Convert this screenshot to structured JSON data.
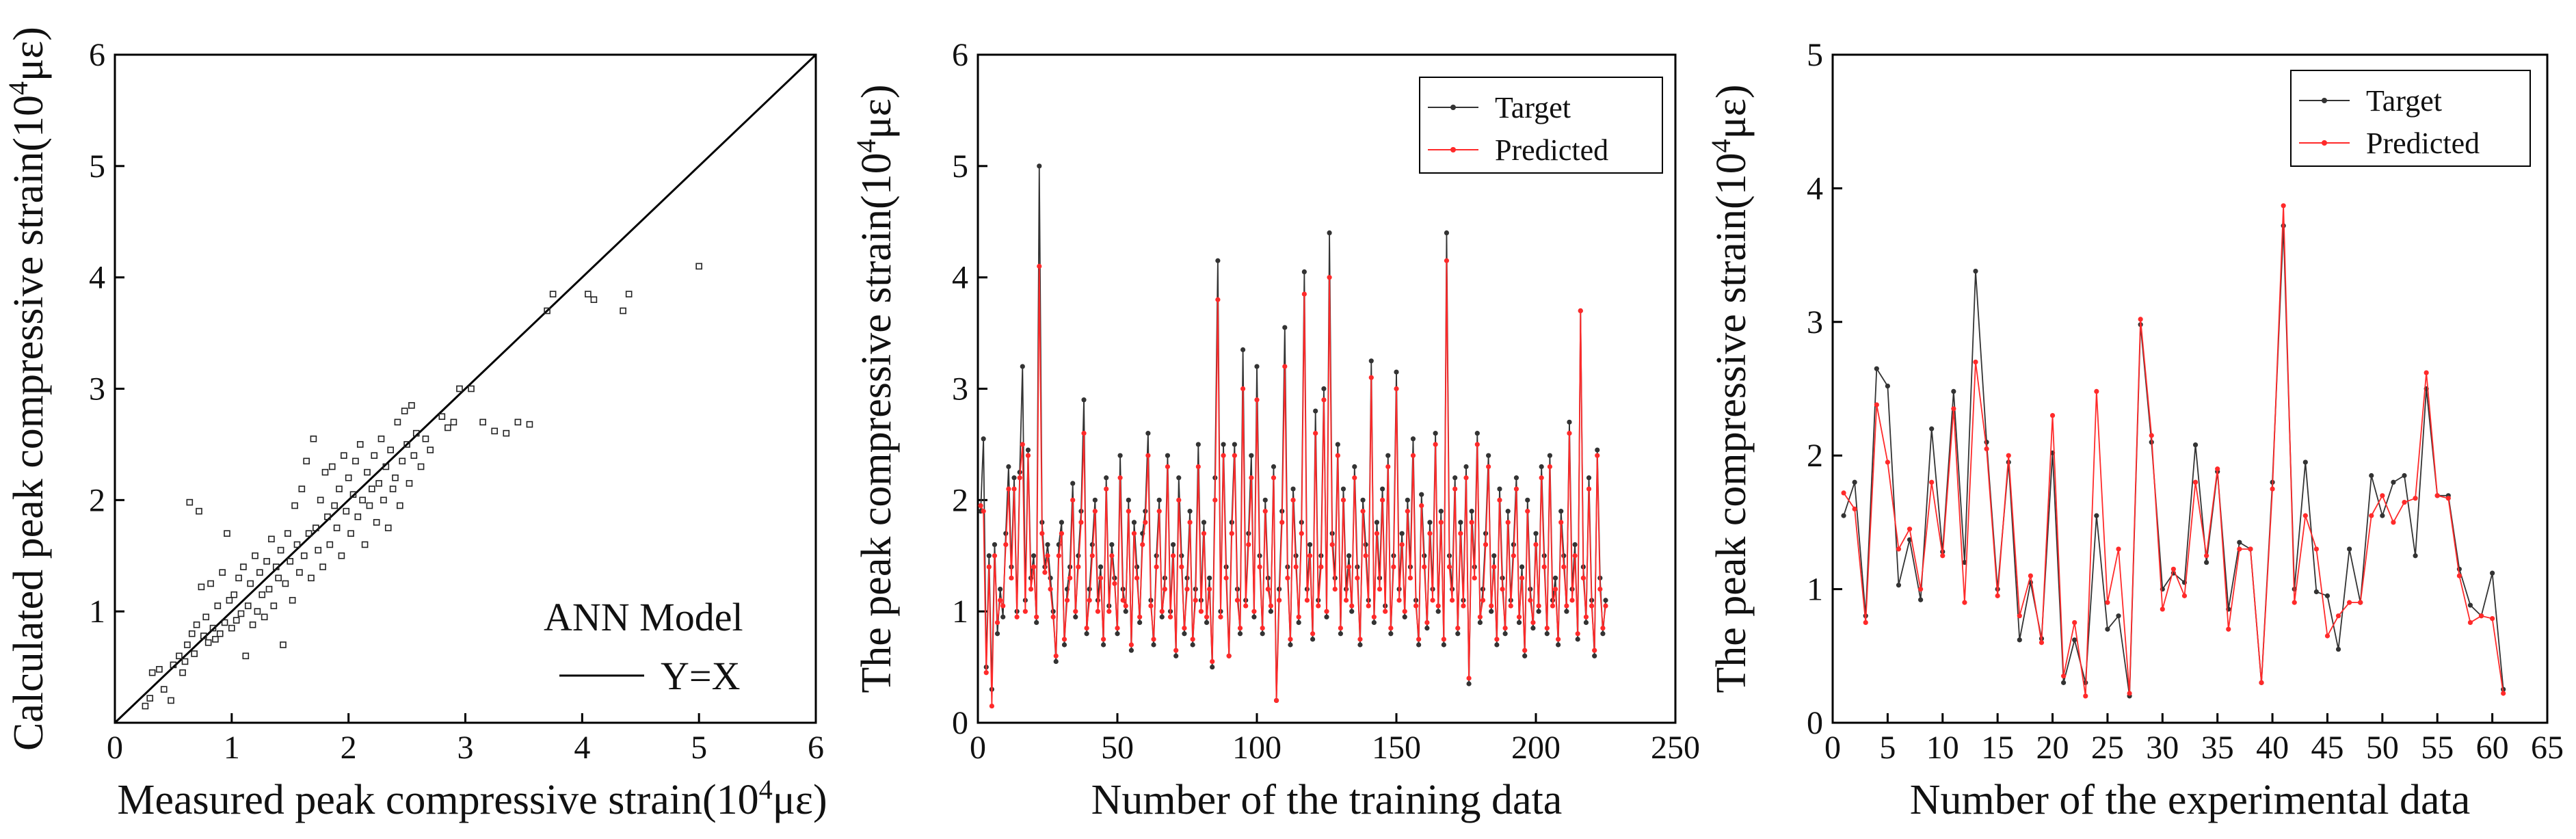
{
  "chart_data": [
    {
      "type": "scatter",
      "title": "",
      "xlabel": "Measured peak compressive strain(10",
      "ylabel": "Calculated peak compressive strain(10",
      "unit_sup": "4",
      "unit_suffix": "με)",
      "xlim": [
        0,
        6
      ],
      "ylim": [
        0,
        6
      ],
      "xticks": [
        0,
        1,
        2,
        3,
        4,
        5,
        6
      ],
      "yticks": [
        1,
        2,
        3,
        4,
        5,
        6
      ],
      "annotation": "ANN Model",
      "line_label": "Y=X",
      "reference_line": {
        "from": [
          0,
          0
        ],
        "to": [
          6,
          6
        ]
      },
      "points": [
        [
          0.26,
          0.15
        ],
        [
          0.3,
          0.22
        ],
        [
          0.32,
          0.45
        ],
        [
          0.38,
          0.48
        ],
        [
          0.42,
          0.3
        ],
        [
          0.48,
          0.2
        ],
        [
          0.5,
          0.52
        ],
        [
          0.55,
          0.6
        ],
        [
          0.58,
          0.45
        ],
        [
          0.6,
          0.55
        ],
        [
          0.62,
          0.7
        ],
        [
          0.64,
          1.98
        ],
        [
          0.66,
          0.8
        ],
        [
          0.68,
          0.62
        ],
        [
          0.7,
          0.88
        ],
        [
          0.72,
          1.9
        ],
        [
          0.74,
          1.22
        ],
        [
          0.76,
          0.78
        ],
        [
          0.78,
          0.95
        ],
        [
          0.8,
          0.72
        ],
        [
          0.82,
          1.25
        ],
        [
          0.84,
          0.85
        ],
        [
          0.86,
          0.75
        ],
        [
          0.88,
          1.05
        ],
        [
          0.9,
          0.8
        ],
        [
          0.92,
          1.35
        ],
        [
          0.94,
          0.9
        ],
        [
          0.96,
          1.7
        ],
        [
          0.98,
          1.1
        ],
        [
          1.0,
          0.85
        ],
        [
          1.02,
          1.15
        ],
        [
          1.04,
          0.92
        ],
        [
          1.06,
          1.3
        ],
        [
          1.08,
          0.98
        ],
        [
          1.1,
          1.4
        ],
        [
          1.12,
          0.6
        ],
        [
          1.14,
          1.05
        ],
        [
          1.16,
          1.25
        ],
        [
          1.18,
          0.88
        ],
        [
          1.2,
          1.5
        ],
        [
          1.22,
          1.0
        ],
        [
          1.24,
          1.35
        ],
        [
          1.26,
          1.15
        ],
        [
          1.28,
          0.95
        ],
        [
          1.3,
          1.45
        ],
        [
          1.32,
          1.2
        ],
        [
          1.34,
          1.65
        ],
        [
          1.36,
          1.05
        ],
        [
          1.38,
          1.4
        ],
        [
          1.4,
          1.3
        ],
        [
          1.42,
          1.55
        ],
        [
          1.44,
          0.7
        ],
        [
          1.46,
          1.25
        ],
        [
          1.48,
          1.7
        ],
        [
          1.5,
          1.45
        ],
        [
          1.52,
          1.1
        ],
        [
          1.54,
          1.95
        ],
        [
          1.56,
          1.6
        ],
        [
          1.58,
          1.35
        ],
        [
          1.6,
          2.1
        ],
        [
          1.62,
          1.5
        ],
        [
          1.64,
          2.35
        ],
        [
          1.66,
          1.7
        ],
        [
          1.68,
          1.3
        ],
        [
          1.7,
          2.55
        ],
        [
          1.72,
          1.75
        ],
        [
          1.74,
          1.55
        ],
        [
          1.76,
          2.0
        ],
        [
          1.78,
          1.4
        ],
        [
          1.8,
          2.25
        ],
        [
          1.82,
          1.85
        ],
        [
          1.84,
          1.6
        ],
        [
          1.86,
          2.3
        ],
        [
          1.88,
          1.95
        ],
        [
          1.9,
          1.75
        ],
        [
          1.92,
          2.1
        ],
        [
          1.94,
          1.5
        ],
        [
          1.96,
          2.4
        ],
        [
          1.98,
          1.9
        ],
        [
          2.0,
          2.2
        ],
        [
          2.02,
          1.7
        ],
        [
          2.04,
          2.05
        ],
        [
          2.06,
          2.35
        ],
        [
          2.08,
          1.85
        ],
        [
          2.1,
          2.5
        ],
        [
          2.12,
          2.0
        ],
        [
          2.14,
          1.6
        ],
        [
          2.16,
          2.25
        ],
        [
          2.18,
          1.95
        ],
        [
          2.2,
          2.1
        ],
        [
          2.22,
          2.4
        ],
        [
          2.24,
          1.8
        ],
        [
          2.26,
          2.15
        ],
        [
          2.28,
          2.55
        ],
        [
          2.3,
          2.0
        ],
        [
          2.32,
          2.3
        ],
        [
          2.34,
          1.75
        ],
        [
          2.36,
          2.45
        ],
        [
          2.38,
          2.1
        ],
        [
          2.4,
          2.2
        ],
        [
          2.42,
          2.7
        ],
        [
          2.44,
          1.95
        ],
        [
          2.46,
          2.35
        ],
        [
          2.48,
          2.8
        ],
        [
          2.5,
          2.5
        ],
        [
          2.52,
          2.15
        ],
        [
          2.54,
          2.85
        ],
        [
          2.56,
          2.4
        ],
        [
          2.58,
          2.6
        ],
        [
          2.62,
          2.3
        ],
        [
          2.66,
          2.55
        ],
        [
          2.7,
          2.45
        ],
        [
          2.8,
          2.75
        ],
        [
          2.85,
          2.65
        ],
        [
          2.9,
          2.7
        ],
        [
          2.95,
          3.0
        ],
        [
          3.05,
          3.0
        ],
        [
          3.15,
          2.7
        ],
        [
          3.25,
          2.62
        ],
        [
          3.35,
          2.6
        ],
        [
          3.45,
          2.7
        ],
        [
          3.55,
          2.68
        ],
        [
          3.7,
          3.7
        ],
        [
          3.75,
          3.85
        ],
        [
          4.05,
          3.85
        ],
        [
          4.1,
          3.8
        ],
        [
          4.35,
          3.7
        ],
        [
          4.4,
          3.85
        ],
        [
          5.0,
          4.1
        ]
      ]
    },
    {
      "type": "line",
      "title": "",
      "xlabel": "Number of the training data",
      "ylabel": "The peak compressive strain(10",
      "unit_sup": "4",
      "unit_suffix": "με)",
      "xlim": [
        0,
        250
      ],
      "ylim": [
        0,
        6
      ],
      "xticks": [
        0,
        50,
        100,
        150,
        200,
        250
      ],
      "yticks": [
        0,
        1,
        2,
        3,
        4,
        5,
        6
      ],
      "legend_position": "top-right",
      "series": [
        {
          "name": "Target",
          "color": "#333333",
          "values": [
            1.9,
            2.55,
            0.5,
            1.5,
            0.3,
            1.6,
            0.8,
            1.2,
            0.95,
            1.7,
            2.3,
            1.4,
            2.2,
            1.0,
            2.25,
            3.2,
            1.1,
            2.45,
            1.3,
            1.5,
            0.9,
            5.0,
            1.8,
            1.4,
            1.6,
            1.3,
            1.0,
            0.55,
            1.6,
            1.8,
            0.7,
            1.2,
            1.4,
            2.15,
            0.95,
            1.5,
            1.9,
            2.9,
            0.8,
            1.2,
            1.6,
            2.0,
            1.1,
            1.4,
            0.7,
            2.2,
            1.05,
            1.6,
            1.3,
            0.8,
            2.4,
            1.2,
            1.0,
            2.0,
            0.65,
            1.8,
            1.4,
            0.9,
            1.7,
            1.9,
            2.6,
            1.1,
            0.7,
            1.5,
            2.0,
            0.95,
            1.3,
            2.4,
            1.0,
            1.6,
            0.6,
            2.2,
            1.5,
            0.8,
            1.3,
            1.9,
            0.7,
            1.2,
            2.5,
            1.1,
            1.8,
            0.9,
            1.3,
            0.5,
            2.2,
            4.15,
            1.0,
            2.5,
            1.4,
            0.6,
            1.8,
            2.5,
            1.2,
            0.8,
            3.35,
            1.1,
            1.7,
            2.4,
            0.95,
            3.2,
            1.5,
            0.8,
            2.0,
            1.3,
            1.0,
            2.3,
            0.2,
            1.2,
            1.9,
            3.55,
            1.4,
            0.7,
            2.1,
            1.5,
            0.9,
            1.8,
            4.05,
            1.2,
            1.6,
            0.75,
            2.8,
            1.1,
            1.5,
            3.0,
            0.95,
            4.4,
            1.7,
            1.3,
            2.5,
            0.8,
            2.1,
            1.2,
            1.5,
            1.0,
            2.3,
            1.4,
            0.7,
            2.0,
            1.6,
            1.1,
            3.25,
            0.9,
            1.8,
            1.3,
            2.1,
            1.05,
            2.4,
            0.8,
            1.5,
            3.15,
            1.2,
            1.7,
            0.95,
            2.0,
            1.4,
            2.55,
            1.1,
            0.7,
            2.05,
            1.5,
            0.85,
            1.8,
            1.2,
            2.6,
            1.0,
            1.9,
            0.7,
            4.4,
            1.5,
            1.2,
            2.2,
            0.8,
            1.8,
            1.1,
            2.3,
            0.35,
            1.9,
            1.4,
            2.6,
            0.9,
            1.2,
            1.7,
            2.4,
            1.0,
            1.5,
            0.7,
            2.1,
            1.3,
            0.8,
            1.9,
            1.1,
            1.6,
            2.2,
            0.9,
            1.4,
            0.6,
            2.0,
            1.2,
            0.85,
            1.7,
            1.0,
            2.3,
            1.5,
            0.8,
            2.4,
            1.1,
            1.3,
            0.7,
            1.9,
            1.5,
            1.0,
            2.7,
            1.2,
            1.6,
            0.75,
            3.7,
            1.4,
            0.9,
            2.2,
            1.1,
            0.6,
            2.45,
            1.3,
            0.8,
            1.1
          ],
          "x_start": 1
        },
        {
          "name": "Predicted",
          "color": "#ff2a2a",
          "values": [
            1.95,
            1.9,
            0.45,
            1.4,
            0.15,
            1.5,
            0.9,
            1.1,
            1.05,
            1.6,
            2.1,
            1.3,
            2.1,
            0.95,
            2.2,
            2.5,
            1.0,
            2.4,
            1.2,
            1.4,
            0.95,
            4.1,
            1.7,
            1.35,
            1.5,
            1.2,
            0.95,
            0.6,
            1.5,
            1.7,
            0.75,
            1.1,
            1.3,
            2.0,
            1.0,
            1.4,
            1.8,
            2.6,
            0.85,
            1.1,
            1.5,
            1.9,
            1.0,
            1.3,
            0.75,
            2.1,
            1.0,
            1.5,
            1.25,
            0.85,
            2.2,
            1.1,
            1.05,
            1.9,
            0.7,
            1.7,
            1.3,
            0.95,
            1.6,
            1.8,
            2.4,
            1.05,
            0.75,
            1.4,
            1.9,
            1.0,
            1.2,
            2.3,
            0.95,
            1.5,
            0.65,
            2.0,
            1.4,
            0.85,
            1.2,
            1.8,
            0.75,
            1.1,
            2.3,
            1.0,
            1.7,
            0.95,
            1.2,
            0.55,
            2.0,
            3.8,
            0.95,
            2.4,
            1.3,
            0.6,
            1.7,
            2.4,
            1.1,
            0.85,
            3.0,
            1.05,
            1.6,
            2.2,
            1.0,
            2.9,
            1.4,
            0.85,
            1.9,
            1.2,
            1.05,
            2.2,
            0.2,
            1.1,
            1.8,
            3.2,
            1.3,
            0.75,
            2.0,
            1.4,
            0.95,
            1.7,
            3.85,
            1.1,
            1.5,
            0.8,
            2.6,
            1.05,
            1.4,
            2.9,
            1.0,
            4.0,
            1.6,
            1.2,
            2.4,
            0.85,
            2.0,
            1.1,
            1.4,
            1.05,
            2.2,
            1.3,
            0.75,
            1.9,
            1.5,
            1.05,
            3.1,
            0.95,
            1.7,
            1.2,
            2.0,
            1.0,
            2.3,
            0.85,
            1.4,
            3.0,
            1.1,
            1.6,
            1.0,
            1.9,
            1.3,
            2.4,
            1.05,
            0.75,
            1.95,
            1.4,
            0.9,
            1.7,
            1.1,
            2.5,
            1.05,
            1.8,
            0.75,
            4.15,
            1.4,
            1.1,
            2.1,
            0.85,
            1.7,
            1.05,
            2.2,
            0.4,
            1.8,
            1.3,
            2.5,
            0.95,
            1.1,
            1.6,
            2.3,
            1.05,
            1.4,
            0.75,
            2.0,
            1.2,
            0.85,
            1.8,
            1.05,
            1.5,
            2.1,
            0.95,
            1.3,
            0.65,
            1.9,
            1.1,
            0.9,
            1.6,
            1.05,
            2.2,
            1.4,
            0.85,
            2.3,
            1.05,
            1.2,
            0.75,
            1.8,
            1.4,
            1.05,
            2.6,
            1.1,
            1.5,
            0.8,
            3.7,
            1.3,
            0.95,
            2.1,
            1.05,
            0.65,
            2.4,
            1.2,
            0.85,
            1.05
          ],
          "x_start": 1
        }
      ]
    },
    {
      "type": "line",
      "title": "",
      "xlabel": "Number of the experimental data",
      "ylabel": "The peak compressive strain(10",
      "unit_sup": "4",
      "unit_suffix": "με)",
      "xlim": [
        0,
        65
      ],
      "ylim": [
        0,
        5
      ],
      "xticks": [
        0,
        5,
        10,
        15,
        20,
        25,
        30,
        35,
        40,
        45,
        50,
        55,
        60,
        65
      ],
      "yticks": [
        0,
        1,
        2,
        3,
        4,
        5
      ],
      "legend_position": "top-right",
      "series": [
        {
          "name": "Target",
          "color": "#333333",
          "values": [
            1.55,
            1.8,
            0.8,
            2.65,
            2.52,
            1.03,
            1.37,
            0.92,
            2.2,
            1.28,
            2.48,
            1.2,
            3.38,
            2.1,
            1.0,
            1.95,
            0.62,
            1.05,
            0.63,
            2.02,
            0.3,
            0.62,
            0.3,
            1.55,
            0.7,
            0.8,
            0.2,
            2.98,
            2.1,
            1.0,
            1.12,
            1.05,
            2.08,
            1.2,
            1.88,
            0.85,
            1.35,
            1.3,
            0.3,
            1.8,
            3.72,
            1.0,
            1.95,
            0.98,
            0.95,
            0.55,
            1.3,
            0.9,
            1.85,
            1.55,
            1.8,
            1.85,
            1.25,
            2.5,
            1.7,
            1.7,
            1.15,
            0.88,
            0.8,
            1.12,
            0.25
          ],
          "x_start": 1
        },
        {
          "name": "Predicted",
          "color": "#ff2a2a",
          "values": [
            1.72,
            1.6,
            0.75,
            2.38,
            1.95,
            1.3,
            1.45,
            1.0,
            1.8,
            1.25,
            2.35,
            0.9,
            2.7,
            2.05,
            0.95,
            2.0,
            0.8,
            1.1,
            0.6,
            2.3,
            0.35,
            0.75,
            0.2,
            2.48,
            0.9,
            1.3,
            0.22,
            3.02,
            2.15,
            0.85,
            1.15,
            0.95,
            1.8,
            1.25,
            1.9,
            0.7,
            1.3,
            1.3,
            0.3,
            1.75,
            3.87,
            0.9,
            1.55,
            1.3,
            0.65,
            0.8,
            0.9,
            0.9,
            1.55,
            1.7,
            1.5,
            1.65,
            1.68,
            2.62,
            1.7,
            1.68,
            1.1,
            0.75,
            0.8,
            0.78,
            0.22
          ],
          "x_start": 1
        }
      ]
    }
  ]
}
